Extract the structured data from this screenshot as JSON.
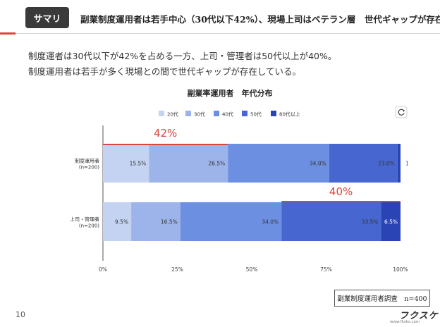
{
  "header": {
    "badge": "サマリ",
    "headline": "副業制度運用者は若手中心（30代以下42%）、現場上司はベテラン層　世代ギャップが存在"
  },
  "summary": [
    "制度運者は30代以下が42%を占める一方、上司・管理者は50代以上が40%。",
    "制度運用者は若手が多く現場との間で世代ギャップが存在している。"
  ],
  "footer": {
    "note": "副業制度運用者調査　n=400",
    "page_number": "10",
    "logo": "フクスケ",
    "site": "www.fksks.com"
  },
  "colors": {
    "accent": "#d9463b",
    "series": [
      "#c4d3f2",
      "#9cb4ea",
      "#6d8fe2",
      "#4766d0",
      "#2a44b5"
    ]
  },
  "refresh_icon": "refresh-icon",
  "chart_data": {
    "type": "bar",
    "orientation": "horizontal",
    "stacked": true,
    "title": "副業率運用者　年代分布",
    "categories": [
      "制度運用者\n(n=200)",
      "上司・管理者\n(n=200)"
    ],
    "series": [
      {
        "name": "20代",
        "values": [
          15.5,
          9.5
        ],
        "labels": [
          "15.5%",
          "9.5%"
        ]
      },
      {
        "name": "30代",
        "values": [
          26.5,
          16.5
        ],
        "labels": [
          "26.5%",
          "16.5%"
        ]
      },
      {
        "name": "40代",
        "values": [
          34.0,
          34.0
        ],
        "labels": [
          "34.0%",
          "34.0%"
        ]
      },
      {
        "name": "50代",
        "values": [
          23.0,
          33.5
        ],
        "labels": [
          "23.0%",
          "33.5%"
        ]
      },
      {
        "name": "60代以上",
        "values": [
          1.0,
          6.5
        ],
        "labels": [
          "1",
          "6.5%"
        ]
      }
    ],
    "xlim": [
      0,
      100
    ],
    "xticks": [
      "0%",
      "25%",
      "50%",
      "75%",
      "100%"
    ],
    "legend": "top",
    "grid": false,
    "annotations": [
      {
        "text": "42%",
        "category": 0,
        "from": 0,
        "to": 42
      },
      {
        "text": "40%",
        "category": 1,
        "from": 60,
        "to": 100
      }
    ]
  }
}
